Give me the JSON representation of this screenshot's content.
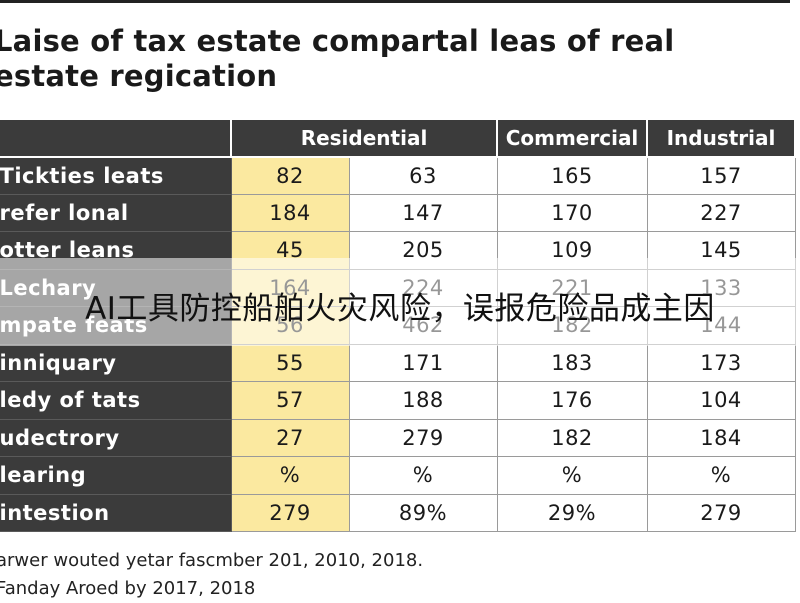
{
  "title": "Laise of tax estate compartal leas of real estate regication",
  "table": {
    "headers": {
      "corner": "",
      "residential": "Residential",
      "commercial": "Commercial",
      "industrial": "Industrial"
    },
    "rows": [
      {
        "label": "Tickties leats",
        "res": "82",
        "c2": "63",
        "comm": "165",
        "ind": "157"
      },
      {
        "label": "refer lonal",
        "res": "184",
        "c2": "147",
        "comm": "170",
        "ind": "227"
      },
      {
        "label": "otter leans",
        "res": "45",
        "c2": "205",
        "comm": "109",
        "ind": "145"
      },
      {
        "label": "Lechary",
        "res": "164",
        "c2": "224",
        "comm": "221",
        "ind": "133"
      },
      {
        "label": "mpate feats",
        "res": "56",
        "c2": "462",
        "comm": "182",
        "ind": "144"
      },
      {
        "label": "inniquary",
        "res": "55",
        "c2": "171",
        "comm": "183",
        "ind": "173"
      },
      {
        "label": "ledy of tats",
        "res": "57",
        "c2": "188",
        "comm": "176",
        "ind": "104"
      },
      {
        "label": "udectrory",
        "res": "27",
        "c2": "279",
        "comm": "182",
        "ind": "184"
      },
      {
        "label": "learing",
        "res": "%",
        "c2": "%",
        "comm": "%",
        "ind": "%"
      },
      {
        "label": "intestion",
        "res": "279",
        "c2": "89%",
        "comm": "29%",
        "ind": "279"
      }
    ]
  },
  "footnotes": [
    "arwer wouted yetar fascmber 201, 2010, 2018.",
    "Fanday Aroed by 2017, 2018"
  ],
  "overlay_caption": "AI工具防控船舶火灾风险，误报危险品成主因"
}
